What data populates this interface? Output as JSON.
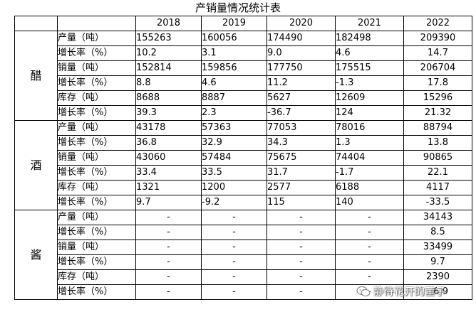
{
  "title": "产销量情况统计表",
  "years": [
    "2018",
    "2019",
    "2020",
    "2021",
    "2022"
  ],
  "groups": [
    {
      "name": "醋",
      "rows": [
        {
          "metric": "产量（吨）",
          "values": [
            "155263",
            "160056",
            "174490",
            "182498",
            "209390"
          ]
        },
        {
          "metric": "增长率（%）",
          "values": [
            "10.2",
            "3.1",
            "9.0",
            "4.6",
            "14.7"
          ]
        },
        {
          "metric": "销量（吨）",
          "values": [
            "152814",
            "159856",
            "177750",
            "175515",
            "206704"
          ]
        },
        {
          "metric": "增长率（%）",
          "values": [
            "8.8",
            "4.6",
            "11.2",
            "-1.3",
            "17.8"
          ]
        },
        {
          "metric": "库存（吨）",
          "values": [
            "8688",
            "8887",
            "5627",
            "12609",
            "15296"
          ]
        },
        {
          "metric": "增长率（%）",
          "values": [
            "39.3",
            "2.3",
            "-36.7",
            "124",
            "21.32"
          ]
        }
      ]
    },
    {
      "name": "酒",
      "rows": [
        {
          "metric": "产量（吨）",
          "values": [
            "43178",
            "57363",
            "77053",
            "78016",
            "88794"
          ]
        },
        {
          "metric": "增长率（%）",
          "values": [
            "36.8",
            "32.9",
            "34.3",
            "1.3",
            "13.8"
          ]
        },
        {
          "metric": "销量（吨）",
          "values": [
            "43060",
            "57484",
            "75675",
            "74404",
            "90865"
          ]
        },
        {
          "metric": "增长率（%）",
          "values": [
            "33.4",
            "33.5",
            "31.7",
            "-1.7",
            "22.1"
          ]
        },
        {
          "metric": "库存（吨）",
          "values": [
            "1321",
            "1200",
            "2577",
            "6188",
            "4117"
          ]
        },
        {
          "metric": "增长率（%）",
          "values": [
            "9.7",
            "-9.2",
            "115",
            "140",
            "-33.5"
          ]
        }
      ]
    },
    {
      "name": "酱",
      "rows": [
        {
          "metric": "产量（吨）",
          "values": [
            "-",
            "-",
            "-",
            "-",
            "34143"
          ]
        },
        {
          "metric": "增长率（%）",
          "values": [
            "-",
            "-",
            "-",
            "-",
            "8.5"
          ]
        },
        {
          "metric": "销量（吨）",
          "values": [
            "-",
            "-",
            "-",
            "-",
            "33499"
          ]
        },
        {
          "metric": "增长率（%）",
          "values": [
            "-",
            "-",
            "-",
            "-",
            "9.7"
          ]
        },
        {
          "metric": "库存（吨）",
          "values": [
            "-",
            "-",
            "-",
            "-",
            "2390"
          ]
        },
        {
          "metric": "增长率（%）",
          "values": [
            "-",
            "-",
            "-",
            "-",
            "36.9"
          ]
        }
      ]
    }
  ],
  "watermark": {
    "text": "静待花开的董子",
    "icon": "wechat-icon"
  }
}
